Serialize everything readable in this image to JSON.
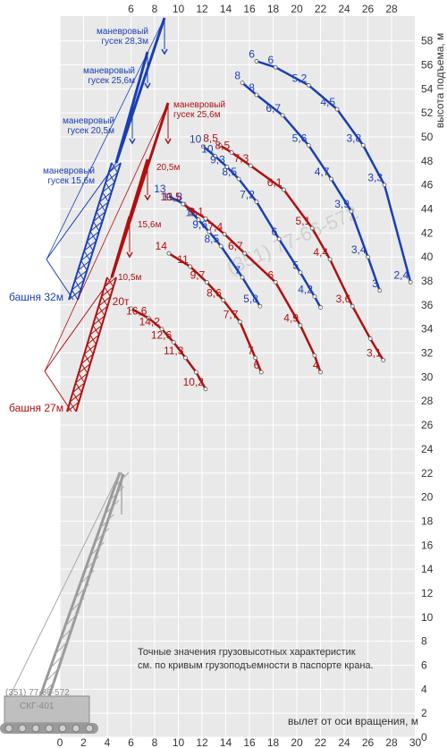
{
  "chart_data": {
    "type": "line",
    "xlabel": "вылет от оси вращения, м",
    "ylabel": "высота подъема, м",
    "x_ticks": [
      0,
      2,
      4,
      6,
      8,
      10,
      12,
      14,
      16,
      18,
      20,
      22,
      24,
      26,
      28,
      30
    ],
    "x_top_ticks": [
      6,
      8,
      10,
      12,
      14,
      16,
      18,
      20,
      22,
      24,
      26,
      28
    ],
    "y_ticks_right": [
      58,
      56,
      54,
      52,
      50,
      48,
      46,
      44,
      42,
      40,
      38,
      36,
      34,
      32,
      30,
      28,
      26,
      24,
      22,
      20,
      18,
      16,
      14,
      12,
      10,
      8,
      6,
      4,
      2,
      0
    ],
    "xlim": [
      0,
      30
    ],
    "ylim": [
      0,
      59
    ],
    "grid": true,
    "series": [
      {
        "name": "маневровый гусек 28,3м",
        "color": "#1a3fb4",
        "x": [
          16.6,
          18.2,
          21.0,
          23.4,
          25.6,
          27.4,
          29.6
        ],
        "y": [
          56.3,
          55.8,
          54.3,
          52.3,
          49.3,
          46.0,
          37.9
        ],
        "labels": [
          "6",
          "6",
          "5,2",
          "4,5",
          "3,8",
          "3,3",
          "2,4"
        ]
      },
      {
        "name": "маневровый гусек 25,6м",
        "color": "#1a3fb4",
        "x": [
          15.4,
          16.6,
          18.8,
          21.0,
          22.9,
          24.6,
          26.0,
          27.0
        ],
        "y": [
          54.5,
          53.5,
          51.8,
          49.3,
          46.5,
          43.8,
          40.0,
          37.2
        ],
        "labels": [
          "8",
          "8",
          "6,7",
          "5,6",
          "4,7",
          "3,9",
          "3,4",
          "3"
        ]
      },
      {
        "name": "маневровый гусек 20,5м",
        "color": "#1a3fb4",
        "x": [
          12.1,
          13.1,
          14.1,
          15.1,
          16.6,
          18.5,
          20.3,
          21.5,
          22.0
        ],
        "y": [
          49.2,
          48.4,
          47.5,
          46.5,
          44.6,
          41.5,
          38.7,
          36.7,
          35.8
        ],
        "labels": [
          "10",
          "10",
          "9,3",
          "8,5",
          "7,2",
          "6",
          "5",
          "4,2",
          ""
        ]
      },
      {
        "name": "маневровый гусек 15,6м",
        "color": "#1a3fb4",
        "x": [
          9.1,
          10.5,
          11.7,
          12.6,
          13.6,
          15.4,
          16.9
        ],
        "y": [
          45.1,
          44.4,
          43.1,
          42.1,
          40.9,
          38.3,
          35.9
        ],
        "labels": [
          "13",
          "11,8",
          "11",
          "9,6",
          "8,5",
          "7",
          "5,8"
        ]
      },
      {
        "name": "гусек 25,6м",
        "color": "#b01010",
        "x": [
          13.5,
          14.5,
          16.1,
          18.9,
          21.3,
          22.8,
          24.7,
          26.2,
          27.3
        ],
        "y": [
          49.3,
          48.7,
          47.6,
          45.6,
          42.4,
          39.8,
          35.9,
          33.2,
          31.4
        ],
        "labels": [
          "8,5",
          "8,5",
          "7,3",
          "6,1",
          "5,1",
          "4,4",
          "3,6",
          "",
          "3,1"
        ]
      },
      {
        "name": "гусек 20,5м",
        "color": "#b01010",
        "x": [
          10.4,
          12.3,
          13.9,
          15.6,
          18.2,
          20.3,
          21.5,
          22.0
        ],
        "y": [
          44.4,
          43.2,
          41.9,
          40.3,
          37.9,
          34.3,
          31.8,
          30.4
        ],
        "labels": [
          "10,5",
          "9,1",
          "7,4",
          "6,7",
          "6",
          "4,9",
          "",
          "4"
        ]
      },
      {
        "name": "гусек 15,6м",
        "color": "#b01010",
        "x": [
          9.2,
          11.0,
          12.4,
          13.8,
          15.2,
          16.5,
          17.0
        ],
        "y": [
          40.3,
          39.2,
          37.9,
          36.4,
          34.6,
          31.6,
          30.4
        ],
        "labels": [
          "14",
          "11",
          "9,7",
          "8,6",
          "7,7",
          "7",
          "6"
        ]
      },
      {
        "name": "гусек 10,5м",
        "color": "#b01010",
        "x": [
          6.0,
          7.5,
          8.6,
          9.6,
          10.6,
          11.5,
          12.3
        ],
        "y": [
          35.7,
          34.9,
          34.0,
          32.9,
          31.6,
          30.4,
          29.0
        ],
        "labels": [
          "20т",
          "16,6",
          "14,2",
          "12,6",
          "11,3",
          "",
          "10,2"
        ]
      }
    ]
  },
  "boom_labels": {
    "b28": [
      "маневровый",
      "гусек 28,3м"
    ],
    "b25": [
      "маневровый",
      "гусек 25,6м"
    ],
    "b20": [
      "маневровый",
      "гусек 20,5м"
    ],
    "b15": [
      "маневровый",
      "гусек 15,6м"
    ],
    "r25": [
      "маневровый",
      "гусек 25,6м"
    ],
    "r20": "20,5м",
    "r15": "15,6м",
    "r10": "10,5м"
  },
  "tower_labels": {
    "t32": "башня 32м",
    "t27": "башня 27м"
  },
  "note": [
    "Точные значения грузовысотных характеристик",
    "см. по кривым грузоподъемности в паспорте крана."
  ],
  "watermark": "(351) 77-66-572",
  "crane_phone": "(351) 77-66-572",
  "crane_model": "СКГ-401"
}
